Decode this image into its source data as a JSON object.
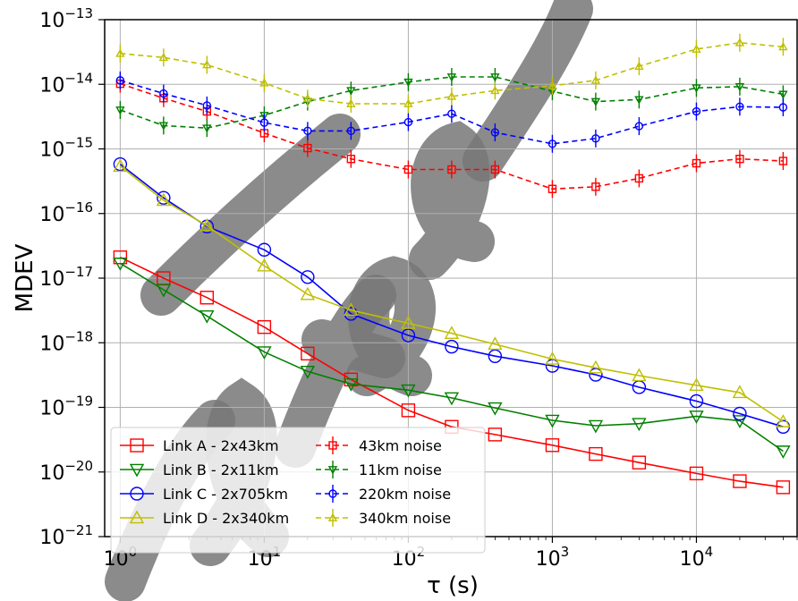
{
  "chart_data": {
    "type": "line",
    "xlabel": "τ (s)",
    "ylabel": "MDEV",
    "x_scale": "log",
    "y_scale": "log",
    "xlim": [
      0.78,
      50000
    ],
    "ylim": [
      1e-21,
      1e-13
    ],
    "grid": true,
    "legend_position": "lower-left",
    "x_ticks": [
      {
        "value": 1,
        "base": "10",
        "exp": "0"
      },
      {
        "value": 10,
        "base": "10",
        "exp": "1"
      },
      {
        "value": 100,
        "base": "10",
        "exp": "2"
      },
      {
        "value": 1000,
        "base": "10",
        "exp": "3"
      },
      {
        "value": 10000,
        "base": "10",
        "exp": "4"
      }
    ],
    "y_ticks": [
      {
        "value": 1e-21,
        "base": "10",
        "exp": "−21"
      },
      {
        "value": 1e-20,
        "base": "10",
        "exp": "−20"
      },
      {
        "value": 1e-19,
        "base": "10",
        "exp": "−19"
      },
      {
        "value": 1e-18,
        "base": "10",
        "exp": "−18"
      },
      {
        "value": 1e-17,
        "base": "10",
        "exp": "−17"
      },
      {
        "value": 1e-16,
        "base": "10",
        "exp": "−16"
      },
      {
        "value": 1e-15,
        "base": "10",
        "exp": "−15"
      },
      {
        "value": 1e-14,
        "base": "10",
        "exp": "−14"
      },
      {
        "value": 1e-13,
        "base": "10",
        "exp": "−13"
      }
    ],
    "x": [
      1,
      2,
      4,
      10,
      20,
      40,
      100,
      200,
      400,
      1000,
      2000,
      4000,
      10000,
      20000,
      40000
    ],
    "series": [
      {
        "name": "Link A - 2x43km",
        "color": "#ff0000",
        "style": "solid",
        "marker": "square",
        "values": [
          2.1e-17,
          1e-17,
          5e-18,
          1.75e-18,
          6.8e-19,
          2.7e-19,
          9e-20,
          5e-20,
          3.8e-20,
          2.6e-20,
          1.9e-20,
          1.4e-20,
          9.5e-21,
          7.2e-21,
          5.8e-21
        ]
      },
      {
        "name": "Link B - 2x11km",
        "color": "#008000",
        "style": "solid",
        "marker": "triangle-down",
        "values": [
          1.7e-17,
          6.6e-18,
          2.6e-18,
          7.2e-19,
          3.6e-19,
          2.3e-19,
          1.85e-19,
          1.4e-19,
          9.8e-20,
          6.3e-20,
          5.2e-20,
          5.6e-20,
          7.3e-20,
          6.2e-20,
          2.1e-20
        ]
      },
      {
        "name": "Link C - 2x705km",
        "color": "#0000ff",
        "style": "solid",
        "marker": "circle",
        "values": [
          5.8e-16,
          1.75e-16,
          6.3e-17,
          2.75e-17,
          1.04e-17,
          2.8e-18,
          1.3e-18,
          8.7e-19,
          6.2e-19,
          4.4e-19,
          3.2e-19,
          2.05e-19,
          1.25e-19,
          8e-20,
          5e-20
        ]
      },
      {
        "name": "Link D - 2x340km",
        "color": "#bfbf00",
        "style": "solid",
        "marker": "triangle-up",
        "values": [
          5.4e-16,
          1.6e-16,
          6.5e-17,
          1.55e-17,
          5.6e-18,
          3.2e-18,
          2e-18,
          1.4e-18,
          9.5e-19,
          5.6e-19,
          4.1e-19,
          3.1e-19,
          2.2e-19,
          1.7e-19,
          6e-20
        ]
      },
      {
        "name": "43km noise",
        "color": "#ff0000",
        "style": "dashed",
        "marker": "plus-square",
        "values": [
          1.02e-14,
          6.1e-15,
          3.8e-15,
          1.75e-15,
          1.03e-15,
          7e-16,
          4.8e-16,
          4.8e-16,
          4.8e-16,
          2.4e-16,
          2.6e-16,
          3.5e-16,
          6e-16,
          7e-16,
          6.5e-16
        ]
      },
      {
        "name": "11km noise",
        "color": "#008000",
        "style": "dashed",
        "marker": "plus-triangle-down",
        "values": [
          4e-15,
          2.3e-15,
          2.1e-15,
          3.3e-15,
          5.4e-15,
          8e-15,
          1.08e-14,
          1.3e-14,
          1.3e-14,
          7.8e-15,
          5.4e-15,
          5.8e-15,
          8.8e-15,
          9.2e-15,
          7e-15
        ]
      },
      {
        "name": "220km noise",
        "color": "#0000ff",
        "style": "dashed",
        "marker": "plus-circle",
        "values": [
          1.15e-14,
          7.2e-15,
          4.7e-15,
          2.55e-15,
          1.9e-15,
          1.9e-15,
          2.6e-15,
          3.5e-15,
          1.8e-15,
          1.2e-15,
          1.45e-15,
          2.25e-15,
          3.8e-15,
          4.5e-15,
          4.4e-15
        ]
      },
      {
        "name": "340km noise",
        "color": "#bfbf00",
        "style": "dashed",
        "marker": "plus-triangle-up",
        "values": [
          3e-14,
          2.6e-14,
          2e-14,
          1.05e-14,
          6e-15,
          5e-15,
          5e-15,
          6.5e-15,
          8e-15,
          9.5e-15,
          1.15e-14,
          1.9e-14,
          3.5e-14,
          4.4e-14,
          3.8e-14
        ]
      }
    ],
    "watermark": "Accepted Manuscript"
  }
}
